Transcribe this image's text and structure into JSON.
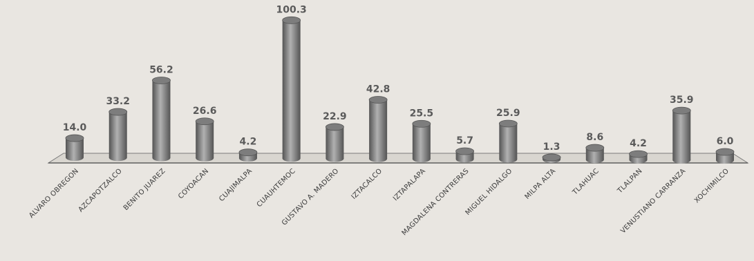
{
  "chart_data": {
    "type": "bar",
    "title": "",
    "xlabel": "",
    "ylabel": "",
    "ylim": [
      0,
      100.3
    ],
    "grid": false,
    "legend": "none",
    "categories": [
      "ALVARO OBREGON",
      "AZCAPOTZALCO",
      "BENITO JUAREZ",
      "COYOACAN",
      "CUAJIMALPA",
      "CUAUHTEMOC",
      "GUSTAVO A. MADERO",
      "IZTACALCO",
      "IZTAPALAPA",
      "MAGDALENA CONTRERAS",
      "MIGUEL HIDALGO",
      "MILPA ALTA",
      "TLAHUAC",
      "TLALPAN",
      "VENUSTIANO CARRANZA",
      "XOCHIMILCO"
    ],
    "values": [
      14.0,
      33.2,
      56.2,
      26.6,
      4.2,
      100.3,
      22.9,
      42.8,
      25.5,
      5.7,
      25.9,
      1.3,
      8.6,
      4.2,
      35.9,
      6.0
    ],
    "value_labels": [
      "14.0",
      "33.2",
      "56.2",
      "26.6",
      "4.2",
      "100.3",
      "22.9",
      "42.8",
      "25.5",
      "5.7",
      "25.9",
      "1.3",
      "8.6",
      "4.2",
      "35.9",
      "6.0"
    ],
    "colors": {
      "bar": "#7d7d7d",
      "bar_dark": "#545454",
      "bar_light": "#b1b1b1",
      "floor": "#d9d6d0",
      "floor_edge": "#7a7a7a"
    }
  }
}
